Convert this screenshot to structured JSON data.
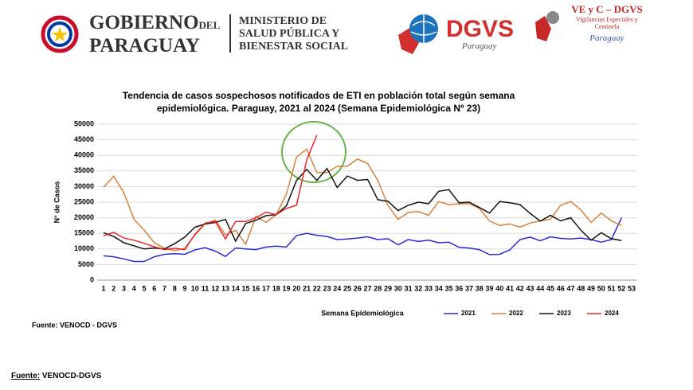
{
  "header": {
    "gov_line1": "GOBIERNO",
    "gov_del": "DEL",
    "gov_line2": "PARAGUAY",
    "ministry": [
      "MINISTERIO DE",
      "SALUD PÚBLICA Y",
      "BIENESTAR SOCIAL"
    ],
    "dgvs": "DGVS",
    "dgvs_sub": "Paraguay",
    "vec_title": "VE y C – DGVS",
    "vec_sub": [
      "Vigilancias Especiales y",
      "Centinela"
    ],
    "vec_country": "Paraguay"
  },
  "chart_data": {
    "type": "line",
    "title": "Tendencia de casos sospechosos notificados de ETI en población total según semana epidemiológica. Paraguay, 2021 al 2024 (Semana Epidemiológica Nº 23)",
    "xlabel": "Semana Epidemiológica",
    "ylabel": "N° de Casos",
    "source": "Fuente: VENOCD - DGVS",
    "categories": [
      1,
      2,
      3,
      4,
      5,
      6,
      7,
      8,
      9,
      10,
      11,
      12,
      13,
      14,
      15,
      16,
      17,
      18,
      19,
      20,
      21,
      22,
      23,
      24,
      25,
      26,
      27,
      28,
      29,
      30,
      31,
      32,
      33,
      34,
      35,
      36,
      37,
      38,
      39,
      40,
      41,
      42,
      43,
      44,
      45,
      46,
      47,
      48,
      49,
      50,
      51,
      52,
      53
    ],
    "ylim": [
      0,
      50000
    ],
    "yticks": [
      0,
      5000,
      10000,
      15000,
      20000,
      25000,
      30000,
      35000,
      40000,
      45000,
      50000
    ],
    "grid": true,
    "legend": "bottom",
    "series": [
      {
        "name": "2021",
        "color": "#2b2bd6",
        "values": [
          7800,
          7500,
          6800,
          6000,
          6000,
          7500,
          8300,
          8500,
          8300,
          9700,
          10400,
          9300,
          7600,
          10300,
          10000,
          9800,
          10600,
          10900,
          10600,
          14300,
          15000,
          14400,
          14000,
          13000,
          13200,
          13500,
          13900,
          13000,
          13300,
          11300,
          13000,
          12400,
          12800,
          12000,
          12200,
          10500,
          10300,
          9800,
          8200,
          8300,
          9700,
          13000,
          13800,
          12600,
          13900,
          13400,
          13200,
          13500,
          13000,
          12200,
          13000,
          20000,
          null
        ]
      },
      {
        "name": "2022",
        "color": "#d9823b",
        "values": [
          29800,
          33300,
          28000,
          19500,
          16000,
          12000,
          10200,
          9500,
          10200,
          14500,
          18000,
          19300,
          14500,
          16000,
          11500,
          20500,
          18500,
          21000,
          27500,
          39500,
          42000,
          34500,
          34500,
          36500,
          36500,
          38800,
          37400,
          32000,
          24000,
          19500,
          21700,
          22000,
          20800,
          25200,
          24200,
          24500,
          24500,
          23000,
          19000,
          17500,
          18000,
          17000,
          18300,
          19000,
          19500,
          24000,
          25200,
          22500,
          18500,
          21500,
          19000,
          17500,
          null
        ]
      },
      {
        "name": "2023",
        "color": "#111111",
        "values": [
          15200,
          14000,
          12000,
          11000,
          10000,
          10300,
          10000,
          11700,
          13800,
          17000,
          18000,
          18500,
          19500,
          12500,
          18200,
          19200,
          20700,
          21000,
          23800,
          32000,
          35500,
          32000,
          35800,
          29700,
          33400,
          32000,
          32300,
          25800,
          25300,
          22300,
          24000,
          25000,
          24500,
          28500,
          29000,
          24800,
          25000,
          23300,
          21500,
          25200,
          24800,
          24200,
          21400,
          18900,
          20800,
          19000,
          20000,
          16000,
          12800,
          15200,
          13300,
          12700,
          null
        ]
      },
      {
        "name": "2024",
        "color": "#e8262b",
        "values": [
          14200,
          15300,
          13500,
          12800,
          11800,
          10700,
          9800,
          10200,
          9800,
          14700,
          18300,
          18800,
          13200,
          18800,
          18800,
          20000,
          21800,
          21000,
          23000,
          24000,
          38500,
          46500,
          null,
          null,
          null,
          null,
          null,
          null,
          null,
          null,
          null,
          null,
          null,
          null,
          null,
          null,
          null,
          null,
          null,
          null,
          null,
          null,
          null,
          null,
          null,
          null,
          null,
          null,
          null,
          null,
          null,
          null,
          null
        ]
      }
    ]
  },
  "footer": {
    "label": "Fuente:",
    "text": "VENOCD-DGVS"
  }
}
